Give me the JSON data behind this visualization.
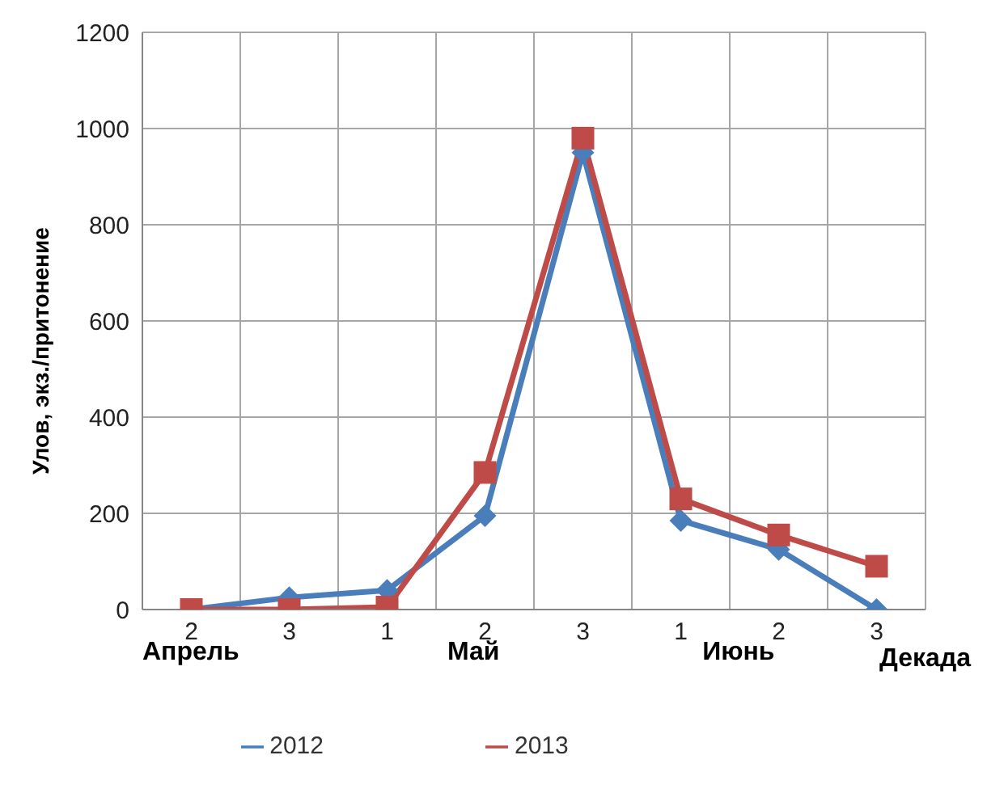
{
  "chart_data": {
    "type": "line",
    "ylabel": "Улов, экз./притонение",
    "xlabel": "Декада",
    "categories": [
      "2",
      "3",
      "1",
      "2",
      "3",
      "1",
      "2",
      "3"
    ],
    "annotations": [
      "Апрель",
      "Май",
      "Июнь"
    ],
    "series": [
      {
        "name": "2012",
        "color": "#4a7ebb",
        "values": [
          0,
          25,
          40,
          195,
          950,
          185,
          125,
          0
        ],
        "marker": "diamond"
      },
      {
        "name": "2013",
        "color": "#be4b48",
        "values": [
          0,
          0,
          5,
          285,
          980,
          230,
          155,
          90
        ],
        "marker": "square"
      }
    ],
    "ylim": [
      0,
      1200
    ],
    "yticks": [
      0,
      200,
      400,
      600,
      800,
      1000,
      1200
    ],
    "grid": true,
    "legend": "bottom",
    "line_style": "solid"
  }
}
